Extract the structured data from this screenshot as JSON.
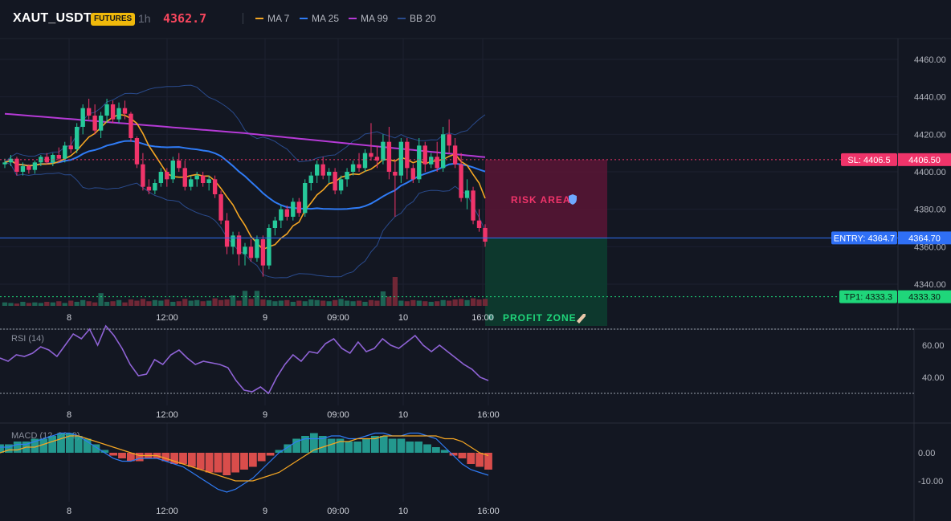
{
  "header": {
    "symbol": "XAUT_USDT",
    "badge": "FUTURES",
    "timeframe": "1h",
    "last_price": "4362.7",
    "legend": [
      {
        "label": "MA 7",
        "color": "#f5a623"
      },
      {
        "label": "MA 25",
        "color": "#2f7bf5"
      },
      {
        "label": "MA 99",
        "color": "#b53ad6"
      },
      {
        "label": "BB 20",
        "color": "#2a4b8d"
      }
    ]
  },
  "colors": {
    "background": "#131722",
    "up": "#26c99a",
    "down": "#f0346a",
    "sl": "#f0346a",
    "entry": "#2f6ff5",
    "tp": "#1fd67a"
  },
  "price_panel": {
    "y_ticks": [
      "4460.00",
      "4440.00",
      "4420.00",
      "4400.00",
      "4380.00",
      "4360.00",
      "4340.00"
    ],
    "x_ticks": [
      "8",
      "12:00",
      "9",
      "09:00",
      "10",
      "16:00"
    ],
    "sl_label": "SL: 4406.5",
    "sl_value": "4406.50",
    "entry_label": "ENTRY: 4364.7",
    "entry_value": "4364.70",
    "tp_label": "TP1: 4333.3",
    "tp_value": "4333.30",
    "risk_label": "RISK AREA",
    "profit_label": "PROFIT ZONE"
  },
  "rsi_panel": {
    "title": "RSI (14)",
    "y_ticks": [
      "60.00",
      "40.00"
    ],
    "x_ticks": [
      "8",
      "12:00",
      "9",
      "09:00",
      "10",
      "16:00"
    ]
  },
  "macd_panel": {
    "title": "MACD (12, 26, 9)",
    "y_ticks": [
      "0.00",
      "-10.00"
    ],
    "x_ticks": [
      "8",
      "12:00",
      "9",
      "09:00",
      "10",
      "16:00"
    ]
  },
  "chart_data": {
    "type": "candlestick",
    "ylim": [
      4325,
      4472
    ],
    "ohlc": [
      [
        4404,
        4407,
        4402,
        4405
      ],
      [
        4405,
        4409,
        4403,
        4407
      ],
      [
        4407,
        4408,
        4398,
        4400
      ],
      [
        4400,
        4405,
        4398,
        4403
      ],
      [
        4403,
        4404,
        4399,
        4401
      ],
      [
        4401,
        4406,
        4399,
        4405
      ],
      [
        4405,
        4409,
        4403,
        4408
      ],
      [
        4408,
        4410,
        4404,
        4405
      ],
      [
        4405,
        4410,
        4403,
        4409
      ],
      [
        4409,
        4413,
        4405,
        4407
      ],
      [
        4407,
        4416,
        4405,
        4414
      ],
      [
        4414,
        4419,
        4410,
        4412
      ],
      [
        4412,
        4426,
        4410,
        4424
      ],
      [
        4424,
        4436,
        4420,
        4434
      ],
      [
        4434,
        4439,
        4428,
        4430
      ],
      [
        4430,
        4436,
        4420,
        4422
      ],
      [
        4422,
        4432,
        4418,
        4430
      ],
      [
        4430,
        4439,
        4426,
        4436
      ],
      [
        4436,
        4438,
        4426,
        4428
      ],
      [
        4428,
        4437,
        4426,
        4434
      ],
      [
        4434,
        4438,
        4428,
        4431
      ],
      [
        4431,
        4432,
        4416,
        4418
      ],
      [
        4418,
        4419,
        4402,
        4404
      ],
      [
        4404,
        4410,
        4390,
        4392
      ],
      [
        4392,
        4396,
        4388,
        4390
      ],
      [
        4390,
        4396,
        4388,
        4394
      ],
      [
        4394,
        4402,
        4392,
        4400
      ],
      [
        4400,
        4402,
        4392,
        4396
      ],
      [
        4396,
        4408,
        4394,
        4406
      ],
      [
        4406,
        4410,
        4400,
        4402
      ],
      [
        4402,
        4406,
        4390,
        4392
      ],
      [
        4392,
        4398,
        4390,
        4396
      ],
      [
        4396,
        4400,
        4392,
        4398
      ],
      [
        4398,
        4400,
        4392,
        4394
      ],
      [
        4394,
        4398,
        4390,
        4396
      ],
      [
        4396,
        4398,
        4386,
        4388
      ],
      [
        4388,
        4390,
        4372,
        4374
      ],
      [
        4374,
        4378,
        4356,
        4360
      ],
      [
        4360,
        4368,
        4356,
        4366
      ],
      [
        4366,
        4368,
        4350,
        4356
      ],
      [
        4356,
        4362,
        4350,
        4360
      ],
      [
        4360,
        4364,
        4352,
        4354
      ],
      [
        4354,
        4366,
        4352,
        4364
      ],
      [
        4364,
        4366,
        4344,
        4350
      ],
      [
        4350,
        4372,
        4348,
        4370
      ],
      [
        4370,
        4376,
        4366,
        4374
      ],
      [
        4374,
        4382,
        4370,
        4380
      ],
      [
        4380,
        4382,
        4374,
        4376
      ],
      [
        4376,
        4386,
        4374,
        4384
      ],
      [
        4384,
        4386,
        4376,
        4378
      ],
      [
        4378,
        4396,
        4376,
        4394
      ],
      [
        4394,
        4400,
        4390,
        4398
      ],
      [
        4398,
        4406,
        4394,
        4404
      ],
      [
        4404,
        4408,
        4396,
        4398
      ],
      [
        4398,
        4402,
        4394,
        4400
      ],
      [
        4400,
        4402,
        4388,
        4390
      ],
      [
        4390,
        4398,
        4388,
        4396
      ],
      [
        4396,
        4402,
        4392,
        4400
      ],
      [
        4400,
        4406,
        4398,
        4404
      ],
      [
        4404,
        4410,
        4400,
        4402
      ],
      [
        4402,
        4412,
        4400,
        4410
      ],
      [
        4410,
        4426,
        4406,
        4408
      ],
      [
        4408,
        4414,
        4402,
        4406
      ],
      [
        4406,
        4420,
        4404,
        4416
      ],
      [
        4416,
        4424,
        4396,
        4400
      ],
      [
        4400,
        4406,
        4376,
        4398
      ],
      [
        4398,
        4418,
        4394,
        4416
      ],
      [
        4416,
        4418,
        4396,
        4402
      ],
      [
        4402,
        4404,
        4394,
        4396
      ],
      [
        4396,
        4418,
        4394,
        4414
      ],
      [
        4414,
        4416,
        4400,
        4404
      ],
      [
        4404,
        4410,
        4402,
        4408
      ],
      [
        4408,
        4416,
        4400,
        4402
      ],
      [
        4402,
        4424,
        4400,
        4420
      ],
      [
        4420,
        4428,
        4410,
        4414
      ],
      [
        4414,
        4418,
        4402,
        4404
      ],
      [
        4404,
        4410,
        4384,
        4386
      ],
      [
        4386,
        4396,
        4380,
        4390
      ],
      [
        4390,
        4392,
        4372,
        4374
      ],
      [
        4374,
        4380,
        4368,
        4370
      ],
      [
        4370,
        4372,
        4360,
        4362.7
      ]
    ],
    "volume": [
      6,
      5,
      4,
      7,
      5,
      6,
      5,
      7,
      6,
      8,
      5,
      9,
      7,
      10,
      8,
      6,
      22,
      7,
      8,
      10,
      6,
      11,
      9,
      12,
      8,
      10,
      9,
      11,
      7,
      8,
      12,
      9,
      10,
      8,
      9,
      13,
      10,
      11,
      18,
      9,
      26,
      12,
      26,
      11,
      10,
      8,
      9,
      10,
      7,
      9,
      8,
      11,
      10,
      9,
      8,
      10,
      12,
      9,
      8,
      9,
      7,
      10,
      9,
      25,
      16,
      50,
      9,
      8,
      10,
      9,
      8,
      7,
      8,
      10,
      9,
      11,
      12,
      10,
      13,
      11,
      12
    ],
    "sl": 4406.5,
    "entry": 4364.7,
    "tp1": 4333.3,
    "rsi": [
      52,
      50,
      54,
      53,
      55,
      59,
      57,
      53,
      60,
      67,
      64,
      70,
      60,
      72,
      66,
      58,
      48,
      41,
      42,
      51,
      48,
      54,
      57,
      52,
      48,
      50,
      49,
      48,
      46,
      38,
      32,
      31,
      34,
      30,
      40,
      48,
      54,
      50,
      56,
      55,
      61,
      64,
      58,
      55,
      62,
      56,
      58,
      64,
      60,
      58,
      62,
      66,
      60,
      56,
      60,
      56,
      52,
      48,
      45,
      40,
      38
    ],
    "macd_hist": [
      3,
      3,
      4,
      4,
      5,
      5,
      6,
      7,
      7,
      6,
      5,
      3,
      1,
      -1,
      -2,
      -3,
      -3,
      -2,
      -2,
      -3,
      -4,
      -4,
      -5,
      -6,
      -7,
      -7,
      -8,
      -7,
      -6,
      -5,
      -3,
      -1,
      1,
      3,
      5,
      6,
      7,
      6,
      5,
      5,
      4,
      4,
      5,
      6,
      6,
      5,
      5,
      4,
      4,
      3,
      2,
      1,
      -1,
      -2,
      -4,
      -5,
      -6
    ],
    "macd_line": [
      2,
      2,
      3,
      3,
      4,
      5,
      6,
      7,
      7,
      6,
      4,
      2,
      0,
      -2,
      -3,
      -3,
      -2,
      -2,
      -2,
      -3,
      -4,
      -5,
      -7,
      -9,
      -11,
      -13,
      -14,
      -13,
      -11,
      -9,
      -6,
      -3,
      0,
      2,
      4,
      5,
      5,
      5,
      6,
      6,
      5,
      5,
      6,
      7,
      7,
      6,
      6,
      7,
      7,
      6,
      5,
      2,
      -1,
      -4,
      -6,
      -7,
      -8
    ],
    "signal_line": [
      0,
      1,
      1,
      2,
      2,
      3,
      4,
      5,
      6,
      6,
      5,
      4,
      3,
      2,
      1,
      0,
      -1,
      -1,
      -1,
      -2,
      -3,
      -4,
      -5,
      -6,
      -7,
      -8,
      -9,
      -10,
      -10,
      -10,
      -9,
      -8,
      -7,
      -5,
      -3,
      -1,
      1,
      2,
      3,
      4,
      4,
      5,
      5,
      5,
      6,
      6,
      6,
      6,
      6,
      6,
      6,
      5,
      5,
      4,
      2,
      0,
      -1
    ]
  }
}
